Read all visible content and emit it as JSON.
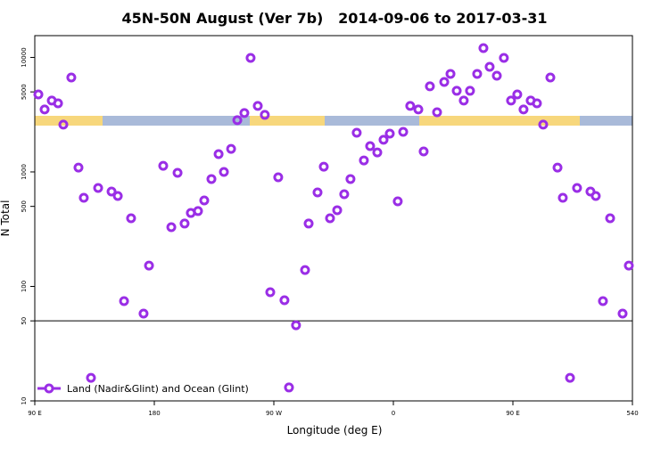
{
  "chart_data": {
    "type": "scatter",
    "title": "45N-50N August (Ver 7b)   2014-09-06 to 2017-03-31",
    "x_label": "Longitude (deg E)",
    "y_label": "N Total",
    "xlim": [
      90,
      540
    ],
    "ylim": [
      10,
      15500
    ],
    "log_y": true,
    "xticks": [
      {
        "value": 90,
        "label": "90 E"
      },
      180,
      {
        "value": 270,
        "label": "90 W"
      },
      {
        "value": 360,
        "label": "0"
      },
      {
        "value": 450,
        "label": "90 E"
      },
      540
    ],
    "yticks": [
      10,
      50,
      100,
      500,
      1000,
      5000,
      10000
    ],
    "reference_line": 50,
    "legend": "bottom left",
    "series": [
      {
        "name": "Land (Nadir&Glint) and Ocean (Glint)",
        "color": "#9a2ee6",
        "x": [
          92.7,
          97.4,
          102.8,
          107.5,
          111.5,
          117.5,
          122.9,
          126.9,
          132.3,
          137.7,
          147.8,
          152.5,
          157.2,
          162.5,
          171.9,
          176,
          186.7,
          192.8,
          197.5,
          202.8,
          207.5,
          212.9,
          217.6,
          223,
          228.4,
          232.4,
          237.8,
          242.5,
          247.8,
          252.5,
          257.9,
          263.2,
          267.3,
          273.3,
          278,
          281.4,
          286.7,
          293.5,
          296.2,
          302.9,
          307.6,
          312.3,
          317.7,
          323,
          327.7,
          332.4,
          337.8,
          342.5,
          347.9,
          352.6,
          357.3,
          363.3,
          367.4,
          372.7,
          378.8,
          382.8,
          387.5,
          392.9,
          398.3,
          403,
          407.7,
          413,
          417.7,
          423.1,
          427.8,
          432.5,
          437.9,
          443.2,
          448.6,
          453.3,
          458,
          463.4,
          468.1,
          472.8,
          478.2,
          483.6,
          487.6,
          493,
          498.3,
          508.4,
          512.4,
          517.8,
          523.2,
          532.6,
          537.3
        ],
        "values": [
          4750,
          3510,
          4200,
          3970,
          2590,
          6680,
          1090,
          594,
          15.9,
          724,
          674,
          616,
          74.4,
          394,
          57.9,
          152,
          1130,
          329,
          982,
          354,
          438,
          455,
          563,
          867,
          1430,
          1000,
          1590,
          2830,
          3270,
          9910,
          3770,
          3150,
          89,
          898,
          75.7,
          13.1,
          45.8,
          139,
          354,
          662,
          1110,
          394,
          463,
          639,
          867,
          2200,
          1260,
          1680,
          1480,
          1910,
          2160,
          553,
          2240,
          3770,
          3510,
          1510,
          5590,
          3320,
          6110,
          7180,
          5110,
          4200,
          5110,
          7180,
          12070,
          8280,
          6920,
          9910,
          4200,
          4750,
          3510,
          4200,
          3970,
          2590,
          6680,
          1090,
          594,
          15.9,
          724,
          674,
          616,
          74.4,
          394,
          57.9,
          152
        ]
      }
    ]
  }
}
